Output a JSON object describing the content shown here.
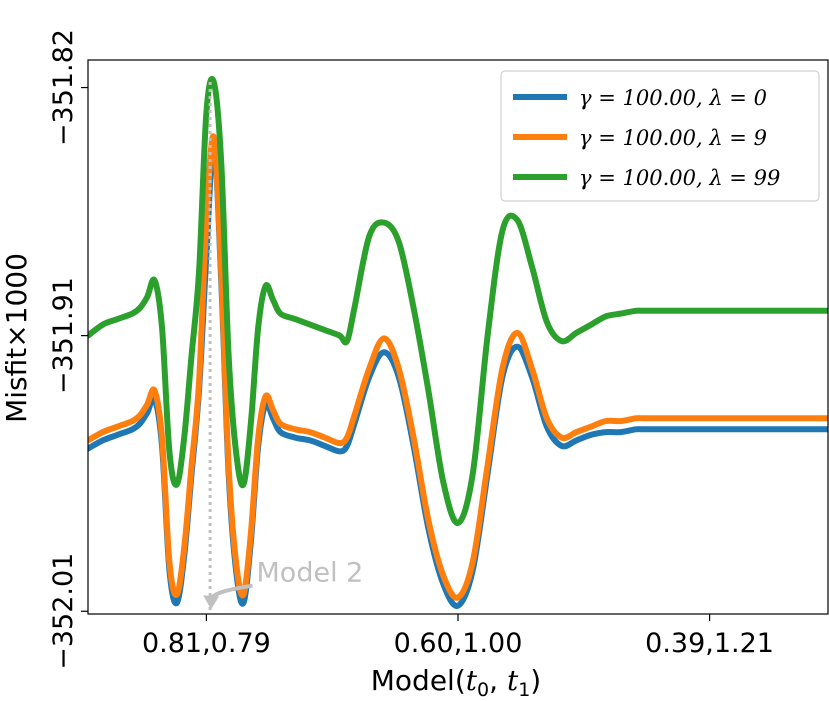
{
  "chart_data": {
    "type": "line",
    "xlabel": "Model(t₀, t₁)",
    "ylabel": "Misfit×1000",
    "xlim": [
      0,
      100
    ],
    "ylim": [
      -352.011,
      -351.81
    ],
    "x_ticks": [
      {
        "x": 16,
        "label": "0.81,0.79"
      },
      {
        "x": 50,
        "label": "0.60,1.00"
      },
      {
        "x": 84,
        "label": "0.39,1.21"
      }
    ],
    "y_ticks": [
      {
        "y": -351.82,
        "label": "−351.82"
      },
      {
        "y": -351.91,
        "label": "−351.91"
      },
      {
        "y": -352.01,
        "label": "−352.01"
      }
    ],
    "grid": false,
    "legend_position": "top-right",
    "series": [
      {
        "name": "γ = 100.00, λ = 0",
        "color": "#1f77b4",
        "x": [
          0,
          2,
          4,
          6,
          7,
          8,
          9,
          10,
          11,
          12,
          13,
          14,
          15,
          16,
          17,
          18,
          19,
          20,
          21,
          22,
          23,
          24,
          25,
          26,
          28,
          30,
          32,
          34,
          35,
          36,
          38,
          40,
          42,
          44,
          46,
          48,
          50,
          52,
          54,
          56,
          58,
          60,
          62,
          64,
          66,
          68,
          70,
          72,
          74,
          75,
          76,
          78,
          80,
          82,
          84,
          86,
          88,
          90,
          95,
          100
        ],
        "y": [
          -351.951,
          -351.948,
          -351.946,
          -351.944,
          -351.942,
          -351.938,
          -351.933,
          -351.95,
          -351.995,
          -352.007,
          -351.99,
          -351.96,
          -351.93,
          -351.881,
          -351.84,
          -351.89,
          -351.96,
          -351.995,
          -352.007,
          -351.985,
          -351.95,
          -351.935,
          -351.94,
          -351.945,
          -351.947,
          -351.948,
          -351.95,
          -351.952,
          -351.95,
          -351.942,
          -351.925,
          -351.916,
          -351.925,
          -351.95,
          -351.98,
          -352.0,
          -352.008,
          -351.995,
          -351.96,
          -351.925,
          -351.914,
          -351.925,
          -351.943,
          -351.95,
          -351.948,
          -351.946,
          -351.945,
          -351.945,
          -351.944,
          -351.944,
          -351.944,
          -351.944,
          -351.944,
          -351.944,
          -351.944,
          -351.944,
          -351.944,
          -351.944,
          -351.944,
          -351.944
        ]
      },
      {
        "name": "γ = 100.00, λ = 9",
        "color": "#ff7f0e",
        "x": [
          0,
          2,
          4,
          6,
          7,
          8,
          9,
          10,
          11,
          12,
          13,
          14,
          15,
          16,
          17,
          18,
          19,
          20,
          21,
          22,
          23,
          24,
          25,
          26,
          28,
          30,
          32,
          34,
          35,
          36,
          38,
          40,
          42,
          44,
          46,
          48,
          50,
          52,
          54,
          56,
          58,
          60,
          62,
          64,
          66,
          68,
          70,
          72,
          74,
          75,
          76,
          78,
          80,
          82,
          84,
          86,
          88,
          90,
          95,
          100
        ],
        "y": [
          -351.948,
          -351.945,
          -351.943,
          -351.941,
          -351.939,
          -351.935,
          -351.93,
          -351.947,
          -351.992,
          -352.004,
          -351.987,
          -351.957,
          -351.927,
          -351.868,
          -351.838,
          -351.887,
          -351.957,
          -351.992,
          -352.004,
          -351.982,
          -351.947,
          -351.932,
          -351.937,
          -351.942,
          -351.944,
          -351.945,
          -351.947,
          -351.949,
          -351.947,
          -351.939,
          -351.922,
          -351.911,
          -351.922,
          -351.947,
          -351.977,
          -351.997,
          -352.005,
          -351.992,
          -351.957,
          -351.922,
          -351.909,
          -351.922,
          -351.94,
          -351.947,
          -351.945,
          -351.943,
          -351.941,
          -351.941,
          -351.94,
          -351.94,
          -351.94,
          -351.94,
          -351.94,
          -351.94,
          -351.94,
          -351.94,
          -351.94,
          -351.94,
          -351.94,
          -351.94
        ]
      },
      {
        "name": "γ = 100.00, λ = 99",
        "color": "#2ca02c",
        "x": [
          0,
          2,
          4,
          6,
          7,
          8,
          9,
          10,
          11,
          12,
          13,
          14,
          15,
          16,
          17,
          18,
          19,
          20,
          21,
          22,
          23,
          24,
          25,
          26,
          28,
          30,
          32,
          34,
          35,
          36,
          38,
          40,
          42,
          44,
          46,
          48,
          50,
          52,
          54,
          56,
          58,
          60,
          62,
          64,
          66,
          68,
          70,
          72,
          74,
          75,
          76,
          78,
          80,
          82,
          84,
          86,
          88,
          90,
          95,
          100
        ],
        "y": [
          -351.91,
          -351.906,
          -351.904,
          -351.902,
          -351.9,
          -351.896,
          -351.89,
          -351.907,
          -351.952,
          -351.964,
          -351.947,
          -351.917,
          -351.887,
          -351.829,
          -351.818,
          -351.847,
          -351.917,
          -351.952,
          -351.964,
          -351.942,
          -351.907,
          -351.892,
          -351.897,
          -351.902,
          -351.904,
          -351.906,
          -351.908,
          -351.91,
          -351.912,
          -351.9,
          -351.874,
          -351.869,
          -351.876,
          -351.9,
          -351.93,
          -351.963,
          -351.978,
          -351.96,
          -351.91,
          -351.872,
          -351.868,
          -351.885,
          -351.905,
          -351.912,
          -351.909,
          -351.906,
          -351.903,
          -351.902,
          -351.901,
          -351.901,
          -351.901,
          -351.901,
          -351.901,
          -351.901,
          -351.901,
          -351.901,
          -351.901,
          -351.901,
          -351.901,
          -351.901
        ]
      }
    ],
    "vline": {
      "x": 16.5,
      "y_top": -351.818,
      "y_bottom": -352.01,
      "color": "#c0c0c0"
    },
    "annotation": {
      "text": "Model 2",
      "x": 22.5,
      "y": -352.0,
      "arrow_to_x": 16.5,
      "arrow_to_y": -352.01,
      "color": "#c0c0c0"
    }
  }
}
